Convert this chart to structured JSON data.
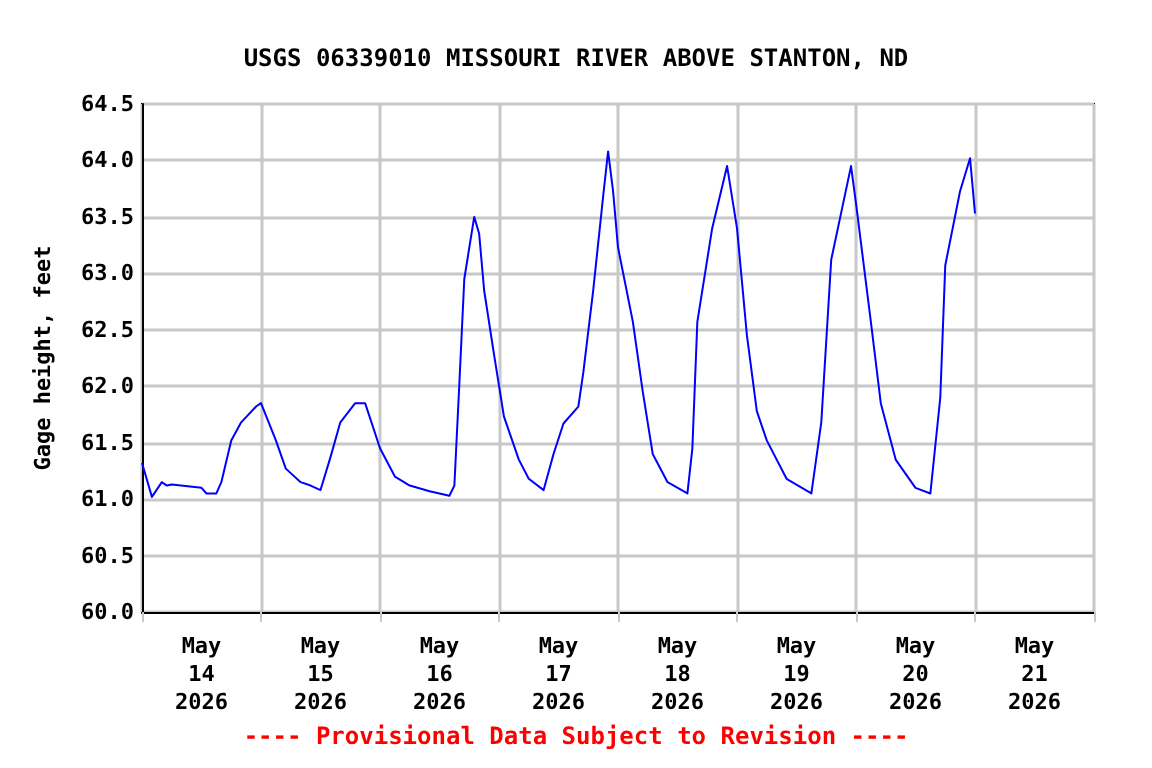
{
  "chart_data": {
    "type": "line",
    "title": "USGS 06339010 MISSOURI RIVER ABOVE STANTON, ND",
    "ylabel": "Gage height, feet",
    "annotations": [
      "---- Provisional Data Subject to Revision ----"
    ],
    "x": [
      "2026-05-14T00:00",
      "2026-05-14T02:00",
      "2026-05-14T04:00",
      "2026-05-14T05:00",
      "2026-05-14T06:00",
      "2026-05-14T12:00",
      "2026-05-14T13:00",
      "2026-05-14T15:00",
      "2026-05-14T16:00",
      "2026-05-14T18:00",
      "2026-05-14T20:00",
      "2026-05-14T23:00",
      "2026-05-15T00:00",
      "2026-05-15T03:00",
      "2026-05-15T05:00",
      "2026-05-15T08:00",
      "2026-05-15T10:00",
      "2026-05-15T12:00",
      "2026-05-15T14:00",
      "2026-05-15T16:00",
      "2026-05-15T19:00",
      "2026-05-15T21:00",
      "2026-05-16T00:00",
      "2026-05-16T03:00",
      "2026-05-16T06:00",
      "2026-05-16T10:00",
      "2026-05-16T14:00",
      "2026-05-16T15:00",
      "2026-05-16T16:00",
      "2026-05-16T17:00",
      "2026-05-16T19:00",
      "2026-05-16T20:00",
      "2026-05-16T21:00",
      "2026-05-16T23:00",
      "2026-05-17T01:00",
      "2026-05-17T04:00",
      "2026-05-17T06:00",
      "2026-05-17T09:00",
      "2026-05-17T11:00",
      "2026-05-17T13:00",
      "2026-05-17T16:00",
      "2026-05-17T17:00",
      "2026-05-17T19:00",
      "2026-05-17T21:00",
      "2026-05-17T22:00",
      "2026-05-17T23:00",
      "2026-05-18T00:00",
      "2026-05-18T03:00",
      "2026-05-18T05:00",
      "2026-05-18T07:00",
      "2026-05-18T10:00",
      "2026-05-18T14:00",
      "2026-05-18T15:00",
      "2026-05-18T16:00",
      "2026-05-18T19:00",
      "2026-05-18T22:00",
      "2026-05-19T00:00",
      "2026-05-19T02:00",
      "2026-05-19T04:00",
      "2026-05-19T06:00",
      "2026-05-19T10:00",
      "2026-05-19T15:00",
      "2026-05-19T17:00",
      "2026-05-19T19:00",
      "2026-05-19T23:00",
      "2026-05-20T00:00",
      "2026-05-20T03:00",
      "2026-05-20T05:00",
      "2026-05-20T08:00",
      "2026-05-20T12:00",
      "2026-05-20T15:00",
      "2026-05-20T17:00",
      "2026-05-20T18:00",
      "2026-05-20T21:00",
      "2026-05-20T23:00",
      "2026-05-21T00:00"
    ],
    "series": [
      {
        "color": "#0000ff",
        "values": [
          61.32,
          61.02,
          61.15,
          61.12,
          61.13,
          61.1,
          61.05,
          61.05,
          61.15,
          61.52,
          61.68,
          61.82,
          61.85,
          61.52,
          61.27,
          61.15,
          61.12,
          61.08,
          61.37,
          61.68,
          61.85,
          61.85,
          61.45,
          61.2,
          61.12,
          61.07,
          61.03,
          61.12,
          62.02,
          62.95,
          63.5,
          63.35,
          62.85,
          62.28,
          61.73,
          61.35,
          61.18,
          61.08,
          61.4,
          61.67,
          61.82,
          62.12,
          62.85,
          63.68,
          64.08,
          63.73,
          63.23,
          62.57,
          61.95,
          61.4,
          61.15,
          61.05,
          61.45,
          62.57,
          63.4,
          63.95,
          63.4,
          62.45,
          61.78,
          61.52,
          61.18,
          61.05,
          61.68,
          63.12,
          63.95,
          63.62,
          62.57,
          61.85,
          61.35,
          61.1,
          61.05,
          61.9,
          63.07,
          63.73,
          64.02,
          63.53
        ]
      }
    ],
    "xlim": [
      "2026-05-14T00:00",
      "2026-05-22T00:00"
    ],
    "xticks": [
      {
        "value": "2026-05-14T00:00",
        "label": null
      },
      {
        "value": "2026-05-14T12:00",
        "label": "May\n14\n2026"
      },
      {
        "value": "2026-05-15T00:00",
        "label": null
      },
      {
        "value": "2026-05-15T12:00",
        "label": "May\n15\n2026"
      },
      {
        "value": "2026-05-16T00:00",
        "label": null
      },
      {
        "value": "2026-05-16T12:00",
        "label": "May\n16\n2026"
      },
      {
        "value": "2026-05-17T00:00",
        "label": null
      },
      {
        "value": "2026-05-17T12:00",
        "label": "May\n17\n2026"
      },
      {
        "value": "2026-05-18T00:00",
        "label": null
      },
      {
        "value": "2026-05-18T12:00",
        "label": "May\n18\n2026"
      },
      {
        "value": "2026-05-19T00:00",
        "label": null
      },
      {
        "value": "2026-05-19T12:00",
        "label": "May\n19\n2026"
      },
      {
        "value": "2026-05-20T00:00",
        "label": null
      },
      {
        "value": "2026-05-20T12:00",
        "label": "May\n20\n2026"
      },
      {
        "value": "2026-05-21T00:00",
        "label": null
      },
      {
        "value": "2026-05-21T12:00",
        "label": "May\n21\n2026"
      },
      {
        "value": "2026-05-22T00:00",
        "label": null
      }
    ],
    "ylim": [
      60,
      64.5
    ],
    "yticks": [
      {
        "value": 60,
        "label": "60.0"
      },
      {
        "value": 60.5,
        "label": "60.5"
      },
      {
        "value": 61,
        "label": "61.0"
      },
      {
        "value": 61.5,
        "label": "61.5"
      },
      {
        "value": 62,
        "label": "62.0"
      },
      {
        "value": 62.5,
        "label": "62.5"
      },
      {
        "value": 63,
        "label": "63.0"
      },
      {
        "value": 63.5,
        "label": "63.5"
      },
      {
        "value": 64,
        "label": "64.0"
      },
      {
        "value": 64.5,
        "label": "64.5"
      }
    ],
    "grid": true,
    "marker": "none",
    "line_style": "solid"
  }
}
